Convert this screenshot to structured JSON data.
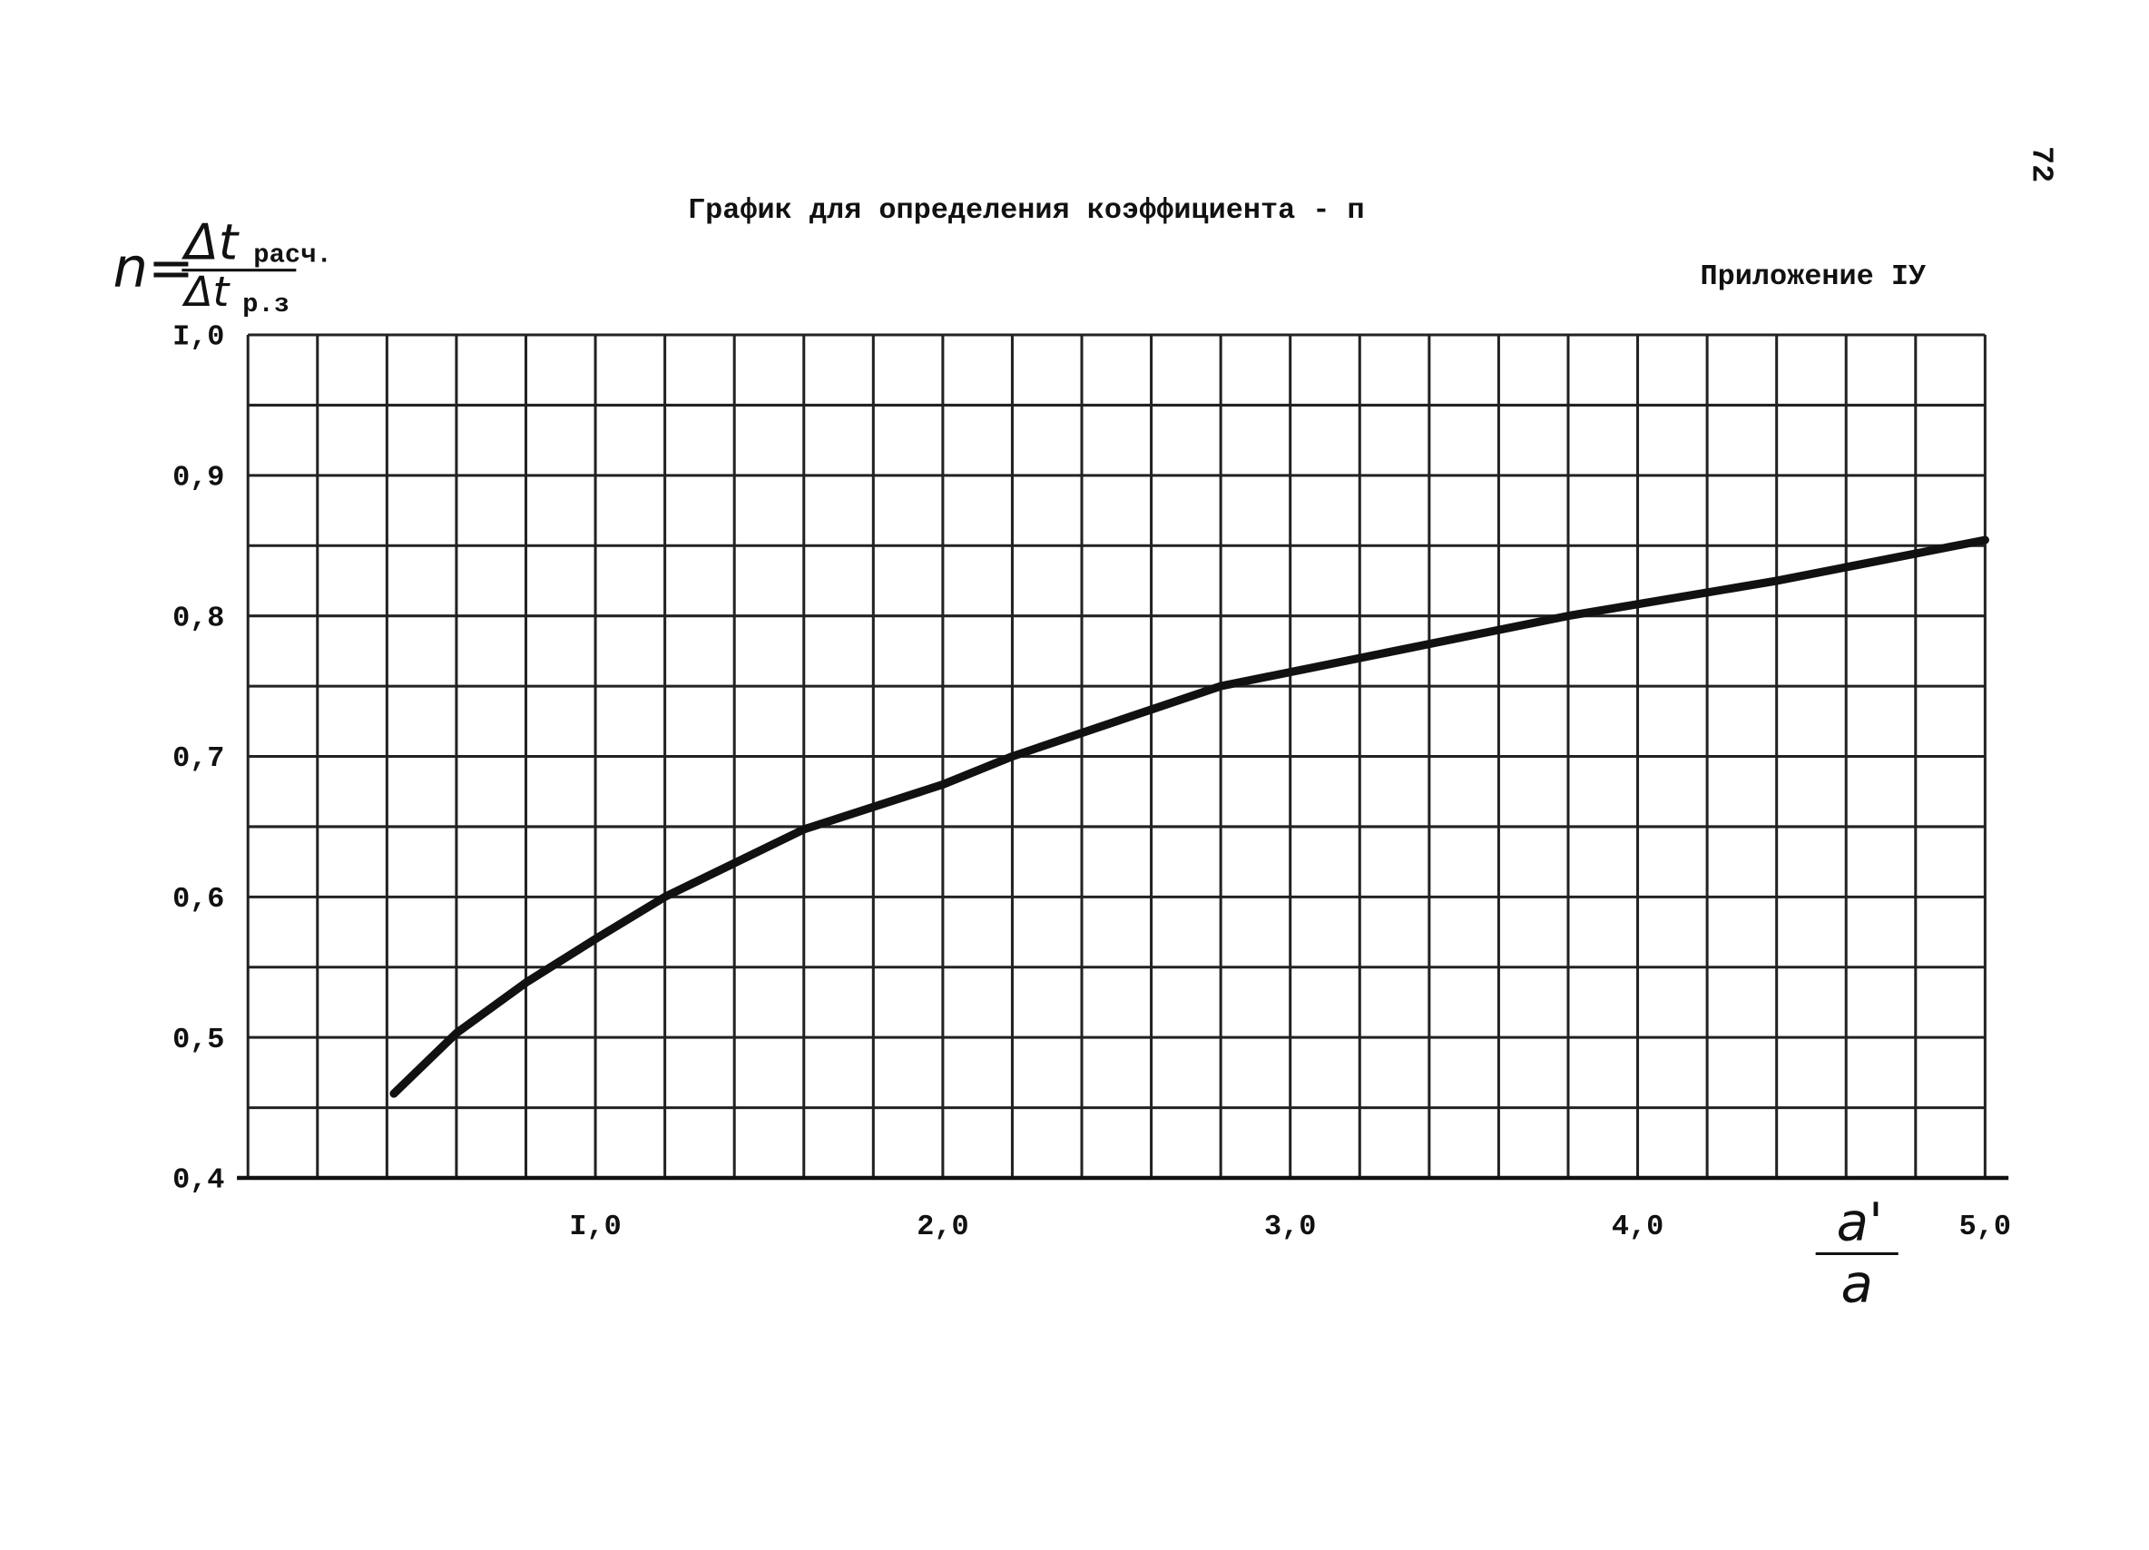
{
  "page_number": "72",
  "chart_data": {
    "type": "line",
    "title": "График для определения коэффициента - п",
    "appendix": "Приложение IУ",
    "y_label": {
      "lhs": "n=",
      "numerator": "Δt",
      "numerator_sub": "расч.",
      "denominator": "Δt",
      "denominator_sub": "р.з"
    },
    "x_label": {
      "numerator": "a'",
      "denominator": "a"
    },
    "xlim": [
      0,
      5.0
    ],
    "ylim": [
      0.4,
      1.0
    ],
    "xticks": [
      {
        "value": 1.0,
        "label": "I,0"
      },
      {
        "value": 2.0,
        "label": "2,0"
      },
      {
        "value": 3.0,
        "label": "3,0"
      },
      {
        "value": 4.0,
        "label": "4,0"
      },
      {
        "value": 5.0,
        "label": "5,0"
      }
    ],
    "yticks": [
      {
        "value": 0.4,
        "label": "0,4"
      },
      {
        "value": 0.5,
        "label": "0,5"
      },
      {
        "value": 0.6,
        "label": "0,6"
      },
      {
        "value": 0.7,
        "label": "0,7"
      },
      {
        "value": 0.8,
        "label": "0,8"
      },
      {
        "value": 0.9,
        "label": "0,9"
      },
      {
        "value": 1.0,
        "label": "I,0"
      }
    ],
    "minor_xticks": [
      0,
      0.2,
      0.4,
      0.6,
      0.8,
      1.2,
      1.4,
      1.6,
      1.8,
      2.2,
      2.4,
      2.6,
      2.8,
      3.2,
      3.4,
      3.6,
      3.8,
      4.2,
      4.4,
      4.6,
      4.8
    ],
    "minor_yticks": [
      0.45,
      0.55,
      0.65,
      0.75,
      0.85,
      0.95
    ],
    "grid": true,
    "series": [
      {
        "color": "#111111",
        "x": [
          0.42,
          0.6,
          0.8,
          1.0,
          1.2,
          1.6,
          2.0,
          2.2,
          2.8,
          3.6,
          3.8,
          4.4,
          5.0
        ],
        "values": [
          0.46,
          0.503,
          0.539,
          0.57,
          0.6,
          0.648,
          0.68,
          0.7,
          0.75,
          0.79,
          0.8,
          0.825,
          0.854
        ]
      }
    ]
  }
}
